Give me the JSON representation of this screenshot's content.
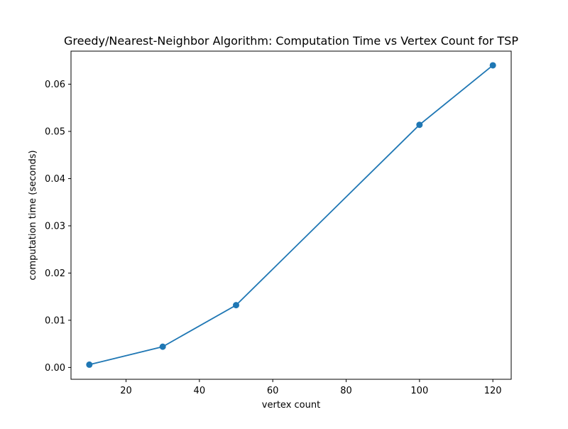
{
  "chart_data": {
    "type": "line",
    "title": "Greedy/Nearest-Neighbor Algorithm: Computation Time vs Vertex Count for TSP",
    "xlabel": "vertex count",
    "ylabel": "computation time (seconds)",
    "xlim": [
      5,
      125
    ],
    "ylim": [
      -0.0025,
      0.067
    ],
    "x_ticks": [
      20,
      40,
      60,
      80,
      100,
      120
    ],
    "y_ticks": [
      0.0,
      0.01,
      0.02,
      0.03,
      0.04,
      0.05,
      0.06
    ],
    "x_tick_labels": [
      "20",
      "40",
      "60",
      "80",
      "100",
      "120"
    ],
    "y_tick_labels": [
      "0.00",
      "0.01",
      "0.02",
      "0.03",
      "0.04",
      "0.05",
      "0.06"
    ],
    "grid": false,
    "series": [
      {
        "color": "#1f77b4",
        "marker": "circle",
        "x": [
          10,
          30,
          50,
          100,
          120
        ],
        "y": [
          0.0006,
          0.0044,
          0.0132,
          0.0514,
          0.064
        ]
      }
    ]
  }
}
